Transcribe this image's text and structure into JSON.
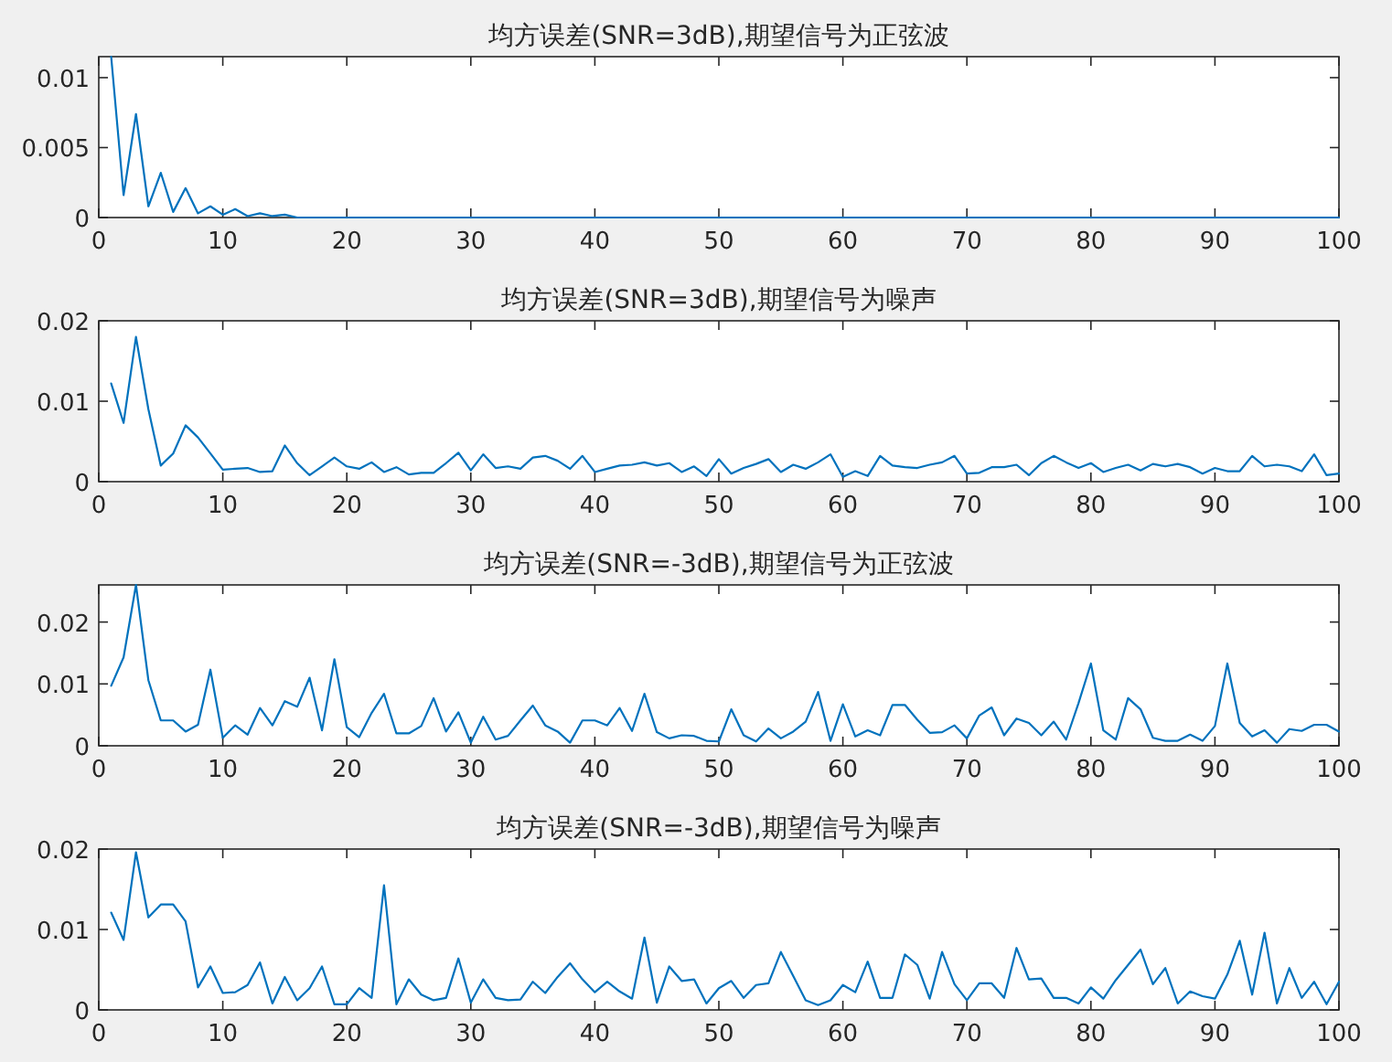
{
  "chart_data": [
    {
      "type": "line",
      "title": "均方误差(SNR=3dB),期望信号为正弦波",
      "color": "#0072bd",
      "xlim": [
        0,
        100
      ],
      "ylim": [
        0,
        0.0115
      ],
      "xticks": [
        0,
        10,
        20,
        30,
        40,
        50,
        60,
        70,
        80,
        90,
        100
      ],
      "yticks": [
        0,
        0.005,
        0.01
      ],
      "x": [
        1,
        2,
        3,
        4,
        5,
        6,
        7,
        8,
        9,
        10,
        11,
        12,
        13,
        14,
        15,
        16,
        17,
        18,
        19,
        20,
        21,
        22,
        23,
        24,
        25,
        26,
        27,
        28,
        29,
        30,
        31,
        32,
        33,
        34,
        35,
        36,
        37,
        38,
        39,
        40,
        41,
        42,
        43,
        44,
        45,
        46,
        47,
        48,
        49,
        50,
        51,
        52,
        53,
        54,
        55,
        56,
        57,
        58,
        59,
        60,
        61,
        62,
        63,
        64,
        65,
        66,
        67,
        68,
        69,
        70,
        71,
        72,
        73,
        74,
        75,
        76,
        77,
        78,
        79,
        80,
        81,
        82,
        83,
        84,
        85,
        86,
        87,
        88,
        89,
        90,
        91,
        92,
        93,
        94,
        95,
        96,
        97,
        98,
        99,
        100
      ],
      "values": [
        0.0115,
        0.0016,
        0.0074,
        0.0008,
        0.0032,
        0.0004,
        0.0021,
        0.0003,
        0.0008,
        0.0002,
        0.0006,
        0.0001,
        0.0003,
        0.0001,
        0.0002,
        0,
        0,
        0,
        0,
        0,
        0,
        0,
        0,
        0,
        0,
        0,
        0,
        0,
        0,
        0,
        0,
        0,
        0,
        0,
        0,
        0,
        0,
        0,
        0,
        0,
        0,
        0,
        0,
        0,
        0,
        0,
        0,
        0,
        0,
        0,
        0,
        0,
        0,
        0,
        0,
        0,
        0,
        0,
        0,
        0,
        0,
        0,
        0,
        0,
        0,
        0,
        0,
        0,
        0,
        0,
        0,
        0,
        0,
        0,
        0,
        0,
        0,
        0,
        0,
        0,
        0,
        0,
        0,
        0,
        0,
        0,
        0,
        0,
        0,
        0,
        0,
        0,
        0,
        0,
        0,
        0,
        0,
        0,
        0,
        0
      ]
    },
    {
      "type": "line",
      "title": "均方误差(SNR=3dB),期望信号为噪声",
      "color": "#0072bd",
      "xlim": [
        0,
        100
      ],
      "ylim": [
        0,
        0.02
      ],
      "xticks": [
        0,
        10,
        20,
        30,
        40,
        50,
        60,
        70,
        80,
        90,
        100
      ],
      "yticks": [
        0,
        0.01,
        0.02
      ],
      "x": [
        1,
        2,
        3,
        4,
        5,
        6,
        7,
        8,
        9,
        10,
        11,
        12,
        13,
        14,
        15,
        16,
        17,
        18,
        19,
        20,
        21,
        22,
        23,
        24,
        25,
        26,
        27,
        28,
        29,
        30,
        31,
        32,
        33,
        34,
        35,
        36,
        37,
        38,
        39,
        40,
        41,
        42,
        43,
        44,
        45,
        46,
        47,
        48,
        49,
        50,
        51,
        52,
        53,
        54,
        55,
        56,
        57,
        58,
        59,
        60,
        61,
        62,
        63,
        64,
        65,
        66,
        67,
        68,
        69,
        70,
        71,
        72,
        73,
        74,
        75,
        76,
        77,
        78,
        79,
        80,
        81,
        82,
        83,
        84,
        85,
        86,
        87,
        88,
        89,
        90,
        91,
        92,
        93,
        94,
        95,
        96,
        97,
        98,
        99,
        100
      ],
      "values": [
        0.0122,
        0.0073,
        0.018,
        0.009,
        0.002,
        0.0035,
        0.007,
        0.0055,
        0.0035,
        0.0015,
        0.0016,
        0.0017,
        0.0012,
        0.0013,
        0.0045,
        0.0023,
        0.0008,
        0.0019,
        0.003,
        0.0019,
        0.0016,
        0.0024,
        0.0012,
        0.0018,
        0.0009,
        0.0011,
        0.0011,
        0.0023,
        0.0036,
        0.0014,
        0.0034,
        0.0017,
        0.0019,
        0.0016,
        0.003,
        0.0032,
        0.0026,
        0.0016,
        0.0032,
        0.0012,
        0.0016,
        0.002,
        0.0021,
        0.0024,
        0.002,
        0.0023,
        0.0012,
        0.0019,
        0.0007,
        0.0028,
        0.001,
        0.0017,
        0.0022,
        0.0028,
        0.0012,
        0.0021,
        0.0016,
        0.0024,
        0.0034,
        0.0006,
        0.0013,
        0.0007,
        0.0032,
        0.002,
        0.0018,
        0.0017,
        0.0021,
        0.0024,
        0.0032,
        0.001,
        0.0011,
        0.0018,
        0.0018,
        0.0021,
        0.0008,
        0.0023,
        0.0032,
        0.0024,
        0.0017,
        0.0023,
        0.0012,
        0.0017,
        0.0021,
        0.0014,
        0.0022,
        0.0019,
        0.0022,
        0.0018,
        0.001,
        0.0017,
        0.0013,
        0.0013,
        0.0032,
        0.0019,
        0.0021,
        0.0019,
        0.0013,
        0.0034,
        0.0008,
        0.001
      ]
    },
    {
      "type": "line",
      "title": "均方误差(SNR=-3dB),期望信号为正弦波",
      "color": "#0072bd",
      "xlim": [
        0,
        100
      ],
      "ylim": [
        0,
        0.026
      ],
      "xticks": [
        0,
        10,
        20,
        30,
        40,
        50,
        60,
        70,
        80,
        90,
        100
      ],
      "yticks": [
        0,
        0.01,
        0.02
      ],
      "x": [
        1,
        2,
        3,
        4,
        5,
        6,
        7,
        8,
        9,
        10,
        11,
        12,
        13,
        14,
        15,
        16,
        17,
        18,
        19,
        20,
        21,
        22,
        23,
        24,
        25,
        26,
        27,
        28,
        29,
        30,
        31,
        32,
        33,
        34,
        35,
        36,
        37,
        38,
        39,
        40,
        41,
        42,
        43,
        44,
        45,
        46,
        47,
        48,
        49,
        50,
        51,
        52,
        53,
        54,
        55,
        56,
        57,
        58,
        59,
        60,
        61,
        62,
        63,
        64,
        65,
        66,
        67,
        68,
        69,
        70,
        71,
        72,
        73,
        74,
        75,
        76,
        77,
        78,
        79,
        80,
        81,
        82,
        83,
        84,
        85,
        86,
        87,
        88,
        89,
        90,
        91,
        92,
        93,
        94,
        95,
        96,
        97,
        98,
        99,
        100
      ],
      "values": [
        0.0097,
        0.0143,
        0.026,
        0.0106,
        0.0041,
        0.0041,
        0.0023,
        0.0034,
        0.0123,
        0.0013,
        0.0033,
        0.0018,
        0.0061,
        0.0033,
        0.0072,
        0.0063,
        0.011,
        0.0025,
        0.014,
        0.003,
        0.0014,
        0.0053,
        0.0084,
        0.002,
        0.002,
        0.0032,
        0.0077,
        0.0023,
        0.0054,
        0.0005,
        0.0047,
        0.001,
        0.0016,
        0.0041,
        0.0065,
        0.0033,
        0.0023,
        0.0005,
        0.0041,
        0.0041,
        0.0033,
        0.0061,
        0.0024,
        0.0084,
        0.0022,
        0.0012,
        0.0017,
        0.0016,
        0.0008,
        0.0007,
        0.0059,
        0.0017,
        0.0007,
        0.0028,
        0.0012,
        0.0023,
        0.0039,
        0.0087,
        0.0008,
        0.0067,
        0.0015,
        0.0025,
        0.0017,
        0.0066,
        0.0066,
        0.0042,
        0.0021,
        0.0022,
        0.0033,
        0.0012,
        0.0049,
        0.0062,
        0.0017,
        0.0044,
        0.0037,
        0.0017,
        0.0039,
        0.001,
        0.0069,
        0.0133,
        0.0025,
        0.001,
        0.0077,
        0.0059,
        0.0013,
        0.0008,
        0.0008,
        0.0018,
        0.0008,
        0.0032,
        0.0133,
        0.0037,
        0.0015,
        0.0025,
        0.0005,
        0.0027,
        0.0024,
        0.0034,
        0.0034,
        0.0023
      ]
    },
    {
      "type": "line",
      "title": "均方误差(SNR=-3dB),期望信号为噪声",
      "color": "#0072bd",
      "xlim": [
        0,
        100
      ],
      "ylim": [
        0,
        0.02
      ],
      "xticks": [
        0,
        10,
        20,
        30,
        40,
        50,
        60,
        70,
        80,
        90,
        100
      ],
      "yticks": [
        0,
        0.01,
        0.02
      ],
      "x": [
        1,
        2,
        3,
        4,
        5,
        6,
        7,
        8,
        9,
        10,
        11,
        12,
        13,
        14,
        15,
        16,
        17,
        18,
        19,
        20,
        21,
        22,
        23,
        24,
        25,
        26,
        27,
        28,
        29,
        30,
        31,
        32,
        33,
        34,
        35,
        36,
        37,
        38,
        39,
        40,
        41,
        42,
        43,
        44,
        45,
        46,
        47,
        48,
        49,
        50,
        51,
        52,
        53,
        54,
        55,
        56,
        57,
        58,
        59,
        60,
        61,
        62,
        63,
        64,
        65,
        66,
        67,
        68,
        69,
        70,
        71,
        72,
        73,
        74,
        75,
        76,
        77,
        78,
        79,
        80,
        81,
        82,
        83,
        84,
        85,
        86,
        87,
        88,
        89,
        90,
        91,
        92,
        93,
        94,
        95,
        96,
        97,
        98,
        99,
        100
      ],
      "values": [
        0.0121,
        0.0087,
        0.0196,
        0.0115,
        0.0131,
        0.0131,
        0.011,
        0.0028,
        0.0054,
        0.0021,
        0.0022,
        0.0031,
        0.0059,
        0.0008,
        0.0041,
        0.0012,
        0.0027,
        0.0054,
        0.0007,
        0.0007,
        0.0027,
        0.0015,
        0.0155,
        0.0007,
        0.0038,
        0.0019,
        0.0012,
        0.0015,
        0.0064,
        0.0009,
        0.0038,
        0.0015,
        0.0012,
        0.0013,
        0.0035,
        0.0021,
        0.0041,
        0.0058,
        0.0038,
        0.0022,
        0.0035,
        0.0023,
        0.0014,
        0.009,
        0.0009,
        0.0054,
        0.0036,
        0.0038,
        0.0008,
        0.0027,
        0.0036,
        0.0015,
        0.0031,
        0.0033,
        0.0072,
        0.0042,
        0.0012,
        0.0006,
        0.0012,
        0.0031,
        0.0022,
        0.006,
        0.0015,
        0.0015,
        0.0069,
        0.0056,
        0.0014,
        0.0072,
        0.0032,
        0.0012,
        0.0033,
        0.0033,
        0.0015,
        0.0077,
        0.0038,
        0.0039,
        0.0015,
        0.0015,
        0.0008,
        0.0028,
        0.0014,
        0.0037,
        0.0056,
        0.0075,
        0.0032,
        0.0052,
        0.0008,
        0.0023,
        0.0017,
        0.0014,
        0.0044,
        0.0086,
        0.0019,
        0.0096,
        0.0008,
        0.0052,
        0.0015,
        0.0035,
        0.0007,
        0.0035
      ]
    }
  ]
}
